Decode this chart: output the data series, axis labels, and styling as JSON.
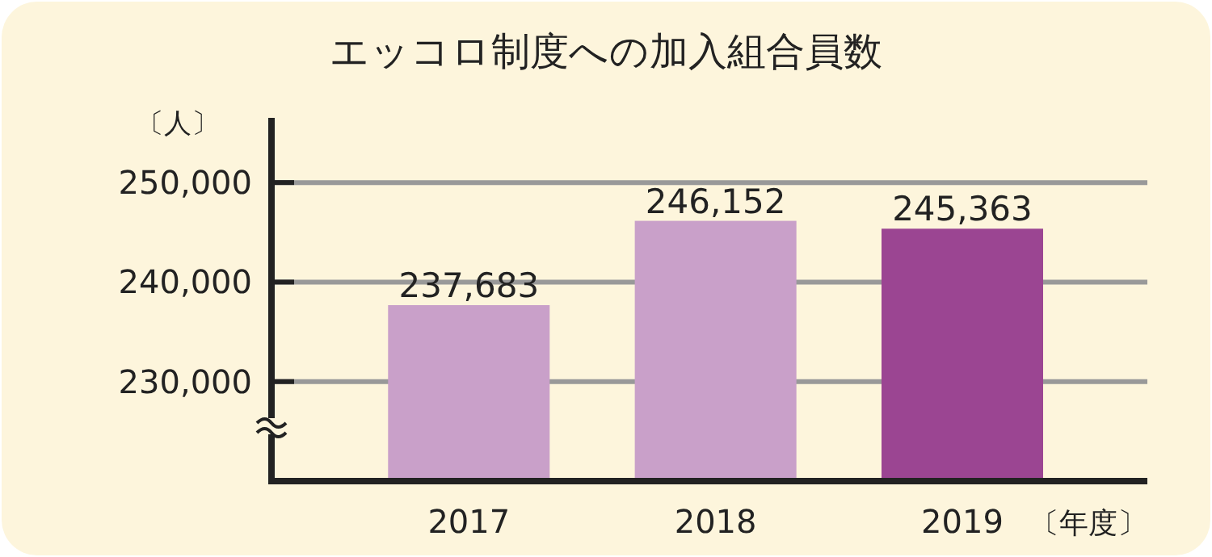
{
  "chart_data": {
    "type": "bar",
    "title": "エッコロ制度への加入組合員数",
    "ylabel": "〔人〕",
    "xlabel": "〔年度〕",
    "categories": [
      "2017",
      "2018",
      "2019"
    ],
    "values": [
      237683,
      246152,
      245363
    ],
    "value_labels": [
      "237,683",
      "246,152",
      "245,363"
    ],
    "colors": [
      "#c9a0c9",
      "#c9a0c9",
      "#9b4592"
    ],
    "ylim": [
      220000,
      256500
    ],
    "yticks": [
      {
        "value": 230000,
        "label": "230,000"
      },
      {
        "value": 240000,
        "label": "240,000"
      },
      {
        "value": 250000,
        "label": "250,000"
      }
    ],
    "grid": "y"
  }
}
